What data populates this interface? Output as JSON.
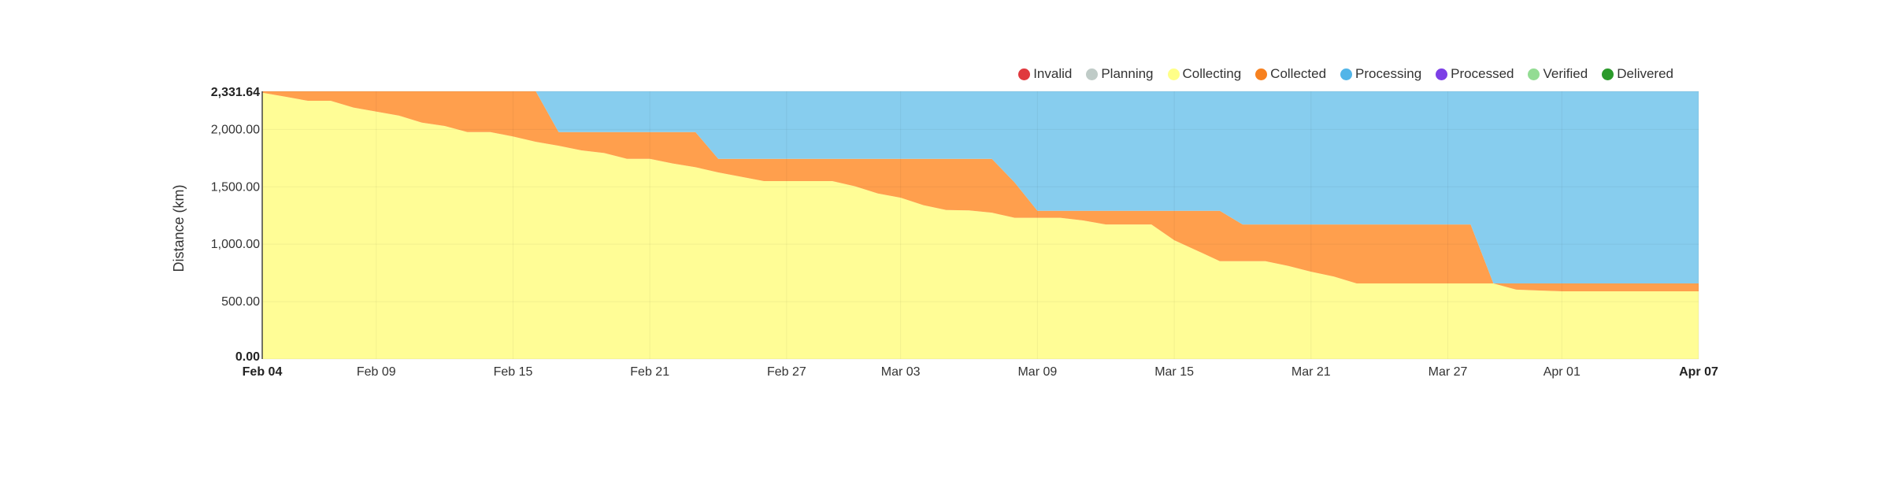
{
  "legend": [
    {
      "label": "Invalid",
      "color": "#e0393e"
    },
    {
      "label": "Planning",
      "color": "#bfcbc7"
    },
    {
      "label": "Collecting",
      "color": "#ffff88"
    },
    {
      "label": "Collected",
      "color": "#f7811f"
    },
    {
      "label": "Processing",
      "color": "#52b5e8"
    },
    {
      "label": "Processed",
      "color": "#7c3fe6"
    },
    {
      "label": "Verified",
      "color": "#93dc93"
    },
    {
      "label": "Delivered",
      "color": "#2b9a2b"
    }
  ],
  "chart_data": {
    "type": "area",
    "stacked": true,
    "ylabel": "Distance (km)",
    "xlabel": "",
    "ylim": [
      0,
      2331.64
    ],
    "yticks": [
      "0.00",
      "500.00",
      "1,000.00",
      "1,500.00",
      "2,000.00",
      "2,331.64"
    ],
    "ytick_values": [
      0,
      500,
      1000,
      1500,
      2000,
      2331.64
    ],
    "xticks": [
      "Feb 04",
      "Feb 09",
      "Feb 15",
      "Feb 21",
      "Feb 27",
      "Mar 03",
      "Mar 09",
      "Mar 15",
      "Mar 21",
      "Mar 27",
      "Apr 01",
      "Apr 07"
    ],
    "grid": true,
    "legend_position": "top-right",
    "x": [
      "Feb 04",
      "Feb 05",
      "Feb 06",
      "Feb 07",
      "Feb 08",
      "Feb 09",
      "Feb 10",
      "Feb 11",
      "Feb 12",
      "Feb 13",
      "Feb 14",
      "Feb 15",
      "Feb 16",
      "Feb 17",
      "Feb 18",
      "Feb 19",
      "Feb 20",
      "Feb 21",
      "Feb 22",
      "Feb 23",
      "Feb 24",
      "Feb 25",
      "Feb 26",
      "Feb 27",
      "Feb 28",
      "Feb 29",
      "Mar 01",
      "Mar 02",
      "Mar 03",
      "Mar 04",
      "Mar 05",
      "Mar 06",
      "Mar 07",
      "Mar 08",
      "Mar 09",
      "Mar 10",
      "Mar 11",
      "Mar 12",
      "Mar 13",
      "Mar 14",
      "Mar 15",
      "Mar 16",
      "Mar 17",
      "Mar 18",
      "Mar 19",
      "Mar 20",
      "Mar 21",
      "Mar 22",
      "Mar 23",
      "Mar 24",
      "Mar 25",
      "Mar 26",
      "Mar 27",
      "Mar 28",
      "Mar 29",
      "Mar 30",
      "Mar 31",
      "Apr 01",
      "Apr 02",
      "Apr 03",
      "Apr 04",
      "Apr 05",
      "Apr 06",
      "Apr 07"
    ],
    "series": [
      {
        "name": "Collecting",
        "color": "#fffd96",
        "values": [
          2320,
          2285,
          2249,
          2249,
          2190,
          2155,
          2120,
          2059,
          2030,
          1977,
          1977,
          1938,
          1892,
          1858,
          1817,
          1794,
          1744,
          1744,
          1703,
          1671,
          1625,
          1588,
          1550,
          1550,
          1550,
          1550,
          1504,
          1442,
          1405,
          1340,
          1298,
          1294,
          1275,
          1230,
          1230,
          1230,
          1207,
          1172,
          1172,
          1172,
          1035,
          944,
          852,
          852,
          852,
          811,
          760,
          718,
          658,
          658,
          658,
          658,
          658,
          658,
          658,
          604,
          597,
          590,
          590,
          590,
          590,
          590,
          590,
          590
        ]
      },
      {
        "name": "Collected",
        "color": "#ff9f4d",
        "values": [
          11.64,
          46.64,
          82.64,
          82.64,
          141.64,
          176.64,
          211.64,
          272.64,
          301.64,
          354.64,
          354.64,
          393.64,
          439.64,
          119,
          160,
          183,
          233,
          233,
          274,
          306,
          119,
          156,
          194,
          194,
          194,
          194,
          240,
          302,
          339,
          404,
          446,
          450,
          469,
          308,
          61,
          61,
          84,
          119,
          119,
          119,
          256,
          347,
          439,
          320,
          320,
          361,
          412,
          454,
          514,
          514,
          514,
          514,
          514,
          514,
          0,
          54,
          61,
          68,
          68,
          68,
          68,
          68,
          68,
          68
        ]
      },
      {
        "name": "Processing",
        "color": "#87cdee",
        "values": [
          0,
          0,
          0,
          0,
          0,
          0,
          0,
          0,
          0,
          0,
          0,
          0,
          0,
          354.64,
          354.64,
          354.64,
          354.64,
          354.64,
          354.64,
          354.64,
          587.64,
          587.64,
          587.64,
          587.64,
          587.64,
          587.64,
          587.64,
          587.64,
          587.64,
          587.64,
          587.64,
          587.64,
          587.64,
          793.64,
          1040.64,
          1040.64,
          1040.64,
          1040.64,
          1040.64,
          1040.64,
          1040.64,
          1040.64,
          1040.64,
          1159.64,
          1159.64,
          1159.64,
          1159.64,
          1159.64,
          1159.64,
          1159.64,
          1159.64,
          1159.64,
          1159.64,
          1159.64,
          1673.64,
          1673.64,
          1673.64,
          1673.64,
          1673.64,
          1673.64,
          1673.64,
          1673.64,
          1673.64,
          1673.64
        ]
      }
    ]
  }
}
